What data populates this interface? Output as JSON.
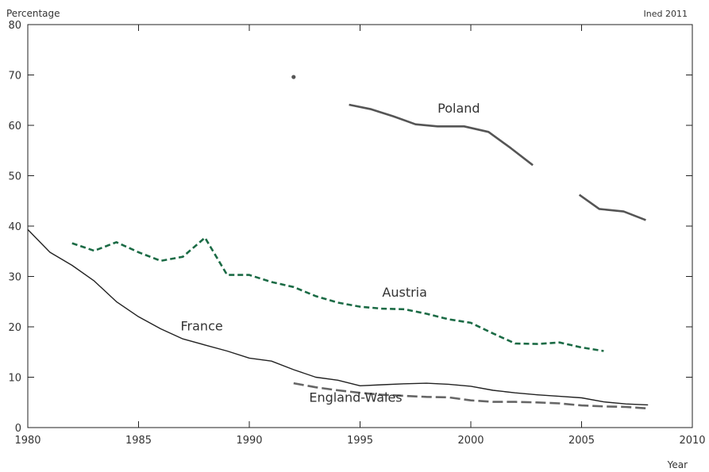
{
  "chart_data": {
    "type": "line",
    "ylabel": "Percentage",
    "xlabel": "Year",
    "credit": "Ined 2011",
    "xlim": [
      1980,
      2010
    ],
    "ylim": [
      0,
      80
    ],
    "xticks": [
      1980,
      1985,
      1990,
      1995,
      2000,
      2005,
      2010
    ],
    "yticks": [
      0,
      10,
      20,
      30,
      40,
      50,
      60,
      70,
      80
    ],
    "grid": false,
    "series": [
      {
        "name": "Poland",
        "color": "#555555",
        "style": "solid",
        "label_at": [
          1998.5,
          62.5
        ],
        "points": [
          [
            1994.5,
            64.1
          ],
          [
            1995.5,
            63.2
          ],
          [
            1996.5,
            61.8
          ],
          [
            1997.5,
            60.2
          ],
          [
            1998.5,
            59.8
          ],
          [
            1999.7,
            59.8
          ],
          [
            2000.8,
            58.7
          ],
          [
            2001.8,
            55.5
          ],
          [
            2002.8,
            52.1
          ],
          null,
          [
            2004.9,
            46.2
          ],
          [
            2005.8,
            43.4
          ],
          [
            2006.9,
            42.9
          ],
          [
            2007.9,
            41.2
          ]
        ],
        "isolated_points": [
          [
            1992,
            69.6
          ]
        ]
      },
      {
        "name": "Austria",
        "color": "#1b6b45",
        "style": "dashed",
        "label_at": [
          1996,
          26
        ],
        "points": [
          [
            1982,
            36.6
          ],
          [
            1983,
            35.1
          ],
          [
            1984,
            36.8
          ],
          [
            1985,
            34.8
          ],
          [
            1986,
            33.1
          ],
          [
            1987,
            33.9
          ],
          [
            1988,
            37.7
          ],
          [
            1989,
            30.3
          ],
          [
            1990,
            30.3
          ],
          [
            1991,
            28.9
          ],
          [
            1992,
            27.9
          ],
          [
            1993,
            26.1
          ],
          [
            1994,
            24.8
          ],
          [
            1995,
            24.0
          ],
          [
            1996,
            23.6
          ],
          [
            1997,
            23.5
          ],
          [
            1998,
            22.6
          ],
          [
            1999,
            21.5
          ],
          [
            2000,
            20.8
          ],
          [
            2001,
            18.7
          ],
          [
            2002,
            16.7
          ],
          [
            2003,
            16.6
          ],
          [
            2004,
            16.9
          ],
          [
            2005,
            15.9
          ],
          [
            2006,
            15.2
          ]
        ]
      },
      {
        "name": "France",
        "color": "#222222",
        "style": "solid-thin",
        "label_at": [
          1986.9,
          19.3
        ],
        "points": [
          [
            1980,
            39.3
          ],
          [
            1981,
            34.8
          ],
          [
            1982,
            32.2
          ],
          [
            1983,
            29.1
          ],
          [
            1984,
            25.0
          ],
          [
            1985,
            22.0
          ],
          [
            1986,
            19.6
          ],
          [
            1987,
            17.6
          ],
          [
            1988,
            16.4
          ],
          [
            1989,
            15.2
          ],
          [
            1990,
            13.8
          ],
          [
            1991,
            13.2
          ],
          [
            1992,
            11.5
          ],
          [
            1993,
            10.0
          ],
          [
            1994,
            9.4
          ],
          [
            1995,
            8.3
          ],
          [
            1996,
            8.5
          ],
          [
            1997,
            8.7
          ],
          [
            1998,
            8.8
          ],
          [
            1999,
            8.6
          ],
          [
            2000,
            8.2
          ],
          [
            2001,
            7.4
          ],
          [
            2002,
            6.9
          ],
          [
            2003,
            6.5
          ],
          [
            2004,
            6.2
          ],
          [
            2005,
            5.9
          ],
          [
            2006,
            5.1
          ],
          [
            2007,
            4.7
          ],
          [
            2008,
            4.5
          ]
        ]
      },
      {
        "name": "England-Wales",
        "color": "#666666",
        "style": "long-dash",
        "label_at": [
          1992.7,
          5.1
        ],
        "points": [
          [
            1992,
            8.8
          ],
          [
            1993,
            8.0
          ],
          [
            1994,
            7.4
          ],
          [
            1995,
            6.9
          ],
          [
            1996,
            6.5
          ],
          [
            1997,
            6.3
          ],
          [
            1998,
            6.1
          ],
          [
            1999,
            6.0
          ],
          [
            2000,
            5.4
          ],
          [
            2001,
            5.1
          ],
          [
            2002,
            5.1
          ],
          [
            2003,
            5.0
          ],
          [
            2004,
            4.8
          ],
          [
            2005,
            4.4
          ],
          [
            2006,
            4.2
          ],
          [
            2007,
            4.1
          ],
          [
            2008,
            3.8
          ]
        ]
      }
    ]
  }
}
